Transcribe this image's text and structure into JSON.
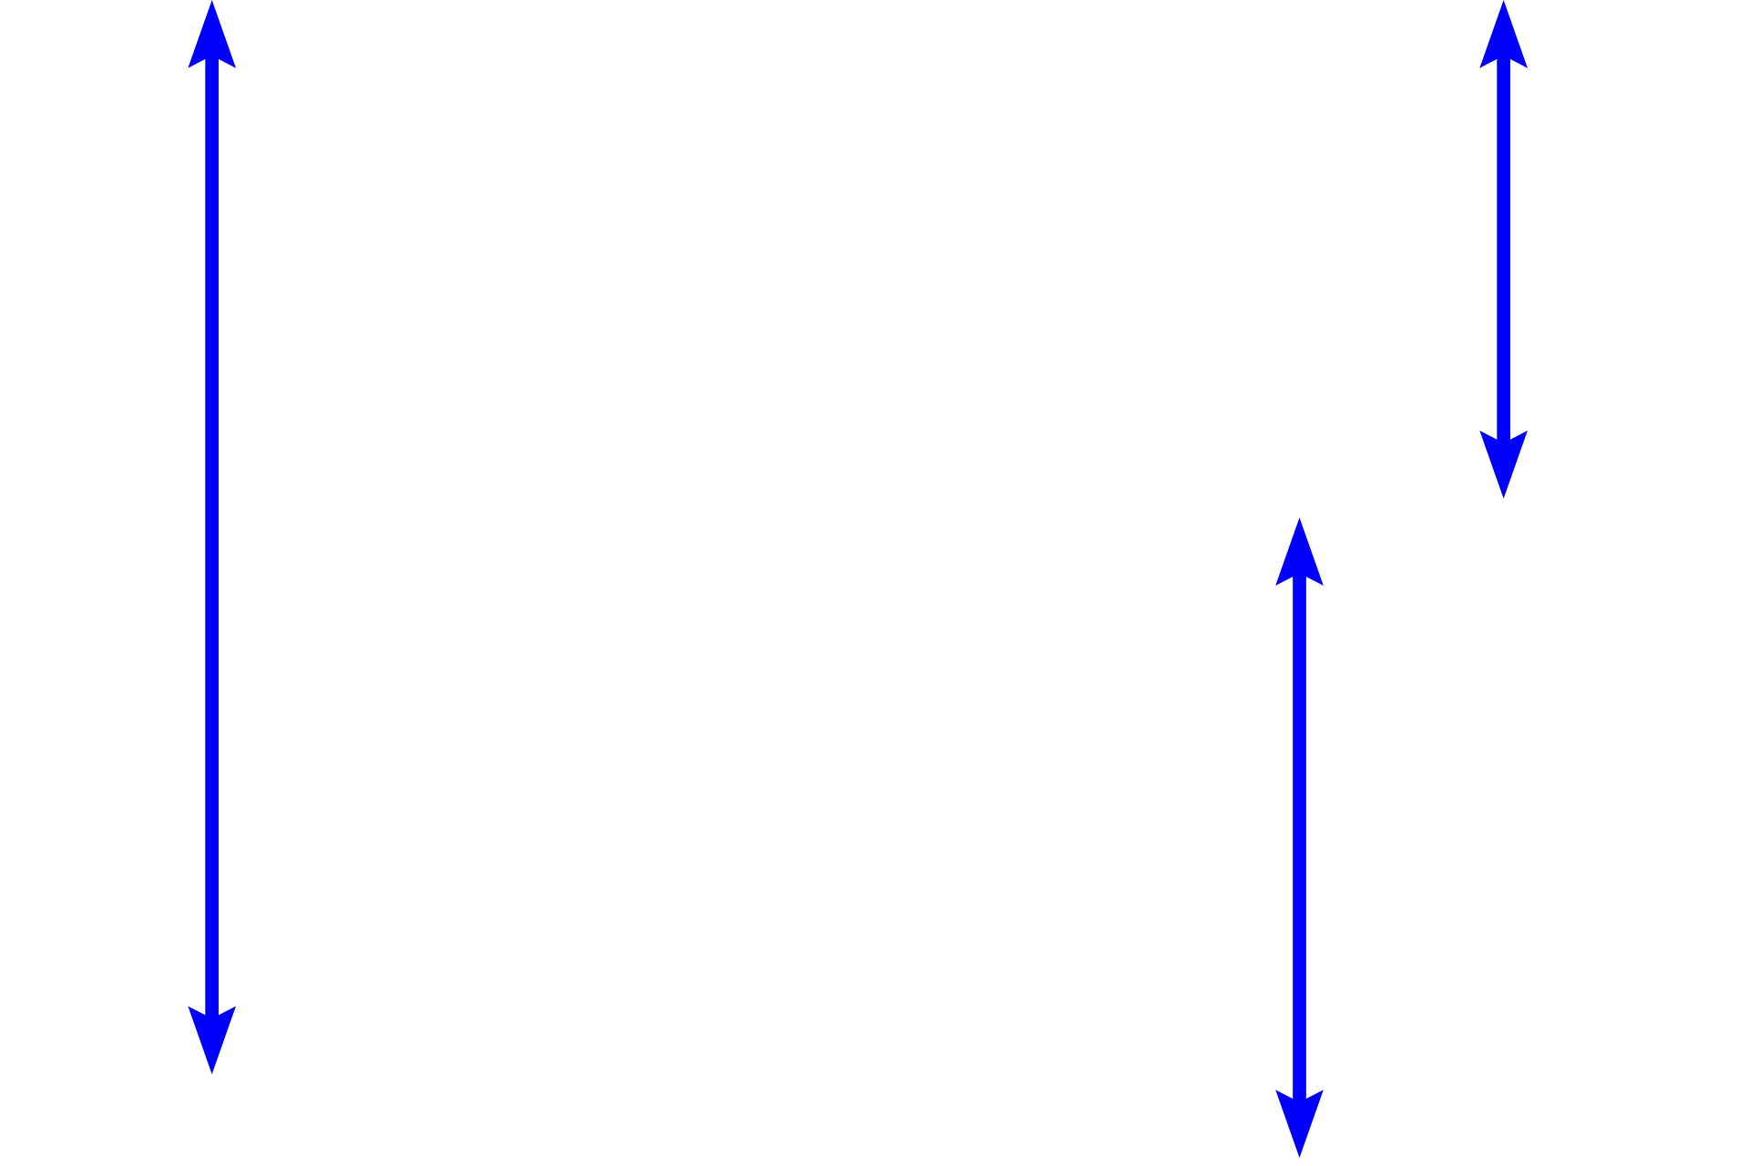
{
  "diagram": {
    "background": "#ffffff",
    "arrow_color": "#0000ff",
    "arrows": [
      {
        "name": "left-long-double-arrow",
        "style": "double-headed"
      },
      {
        "name": "top-right-double-arrow",
        "style": "double-headed"
      },
      {
        "name": "bottom-right-double-arrow",
        "style": "double-headed"
      }
    ]
  }
}
